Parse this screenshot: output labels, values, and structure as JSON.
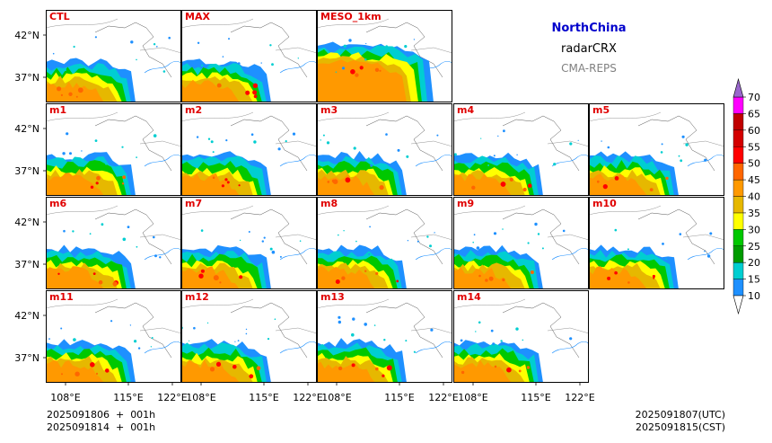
{
  "chart_data": {
    "type": "heatmap",
    "figure_title": "NorthChina",
    "variable": "radarCRX",
    "system": "CMA-REPS",
    "panels": [
      "CTL",
      "MAX",
      "MESO_1km",
      "m1",
      "m2",
      "m3",
      "m4",
      "m5",
      "m6",
      "m7",
      "m8",
      "m9",
      "m10",
      "m11",
      "m12",
      "m13",
      "m14"
    ],
    "lat_ticks": [
      "42°N",
      "37°N"
    ],
    "lon_ticks": [
      "108°E",
      "115°E",
      "122°E"
    ],
    "colorbar": {
      "levels": [
        10,
        15,
        20,
        25,
        30,
        35,
        40,
        45,
        50,
        55,
        60,
        65,
        70
      ],
      "colors": [
        "#1e90ff",
        "#00ced1",
        "#009b00",
        "#00c800",
        "#ffff00",
        "#e6b800",
        "#ff9900",
        "#ff6600",
        "#ff0000",
        "#d40000",
        "#c00000",
        "#ff00ff",
        "#9900cc"
      ],
      "extend": "both"
    },
    "footer": {
      "init_line1": "2025091806  +  001h",
      "init_line2": "2025091814  +  001h",
      "valid_utc": "2025091807(UTC)",
      "valid_cst": "2025091815(CST)"
    }
  }
}
